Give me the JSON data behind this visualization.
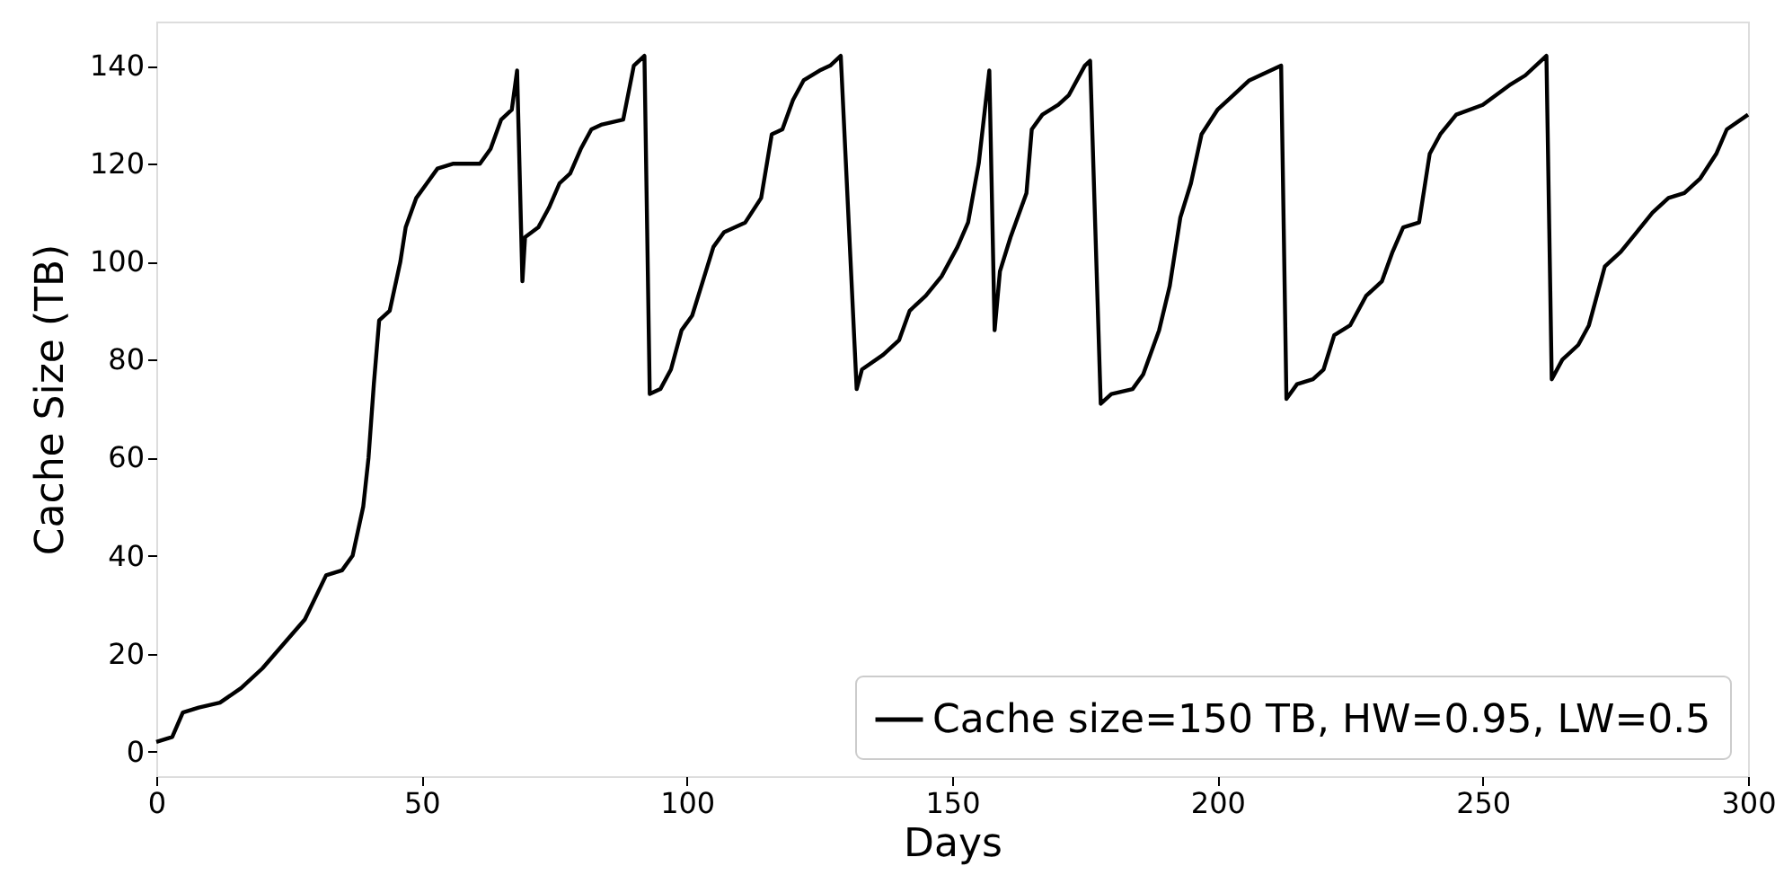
{
  "chart_data": {
    "type": "line",
    "xlabel": "Days",
    "ylabel": "Cache Size (TB)",
    "x": [
      0,
      3,
      5,
      8,
      12,
      16,
      20,
      24,
      28,
      32,
      35,
      37,
      39,
      40,
      41,
      42,
      44,
      46,
      47,
      49,
      51,
      53,
      56,
      61,
      63,
      65,
      67,
      68,
      69,
      69.5,
      72,
      74,
      76,
      78,
      80,
      82,
      84,
      88,
      90,
      92,
      93,
      95,
      97,
      99,
      101,
      103,
      105,
      107,
      111,
      114,
      116,
      118,
      120,
      122,
      125,
      127,
      129,
      132,
      133,
      137,
      140,
      142,
      145,
      148,
      151,
      153,
      155,
      157,
      158,
      159,
      161,
      164,
      165,
      167,
      170,
      172,
      175,
      176,
      178,
      180,
      184,
      186,
      189,
      191,
      193,
      195,
      197,
      200,
      203,
      206,
      208,
      210,
      212,
      213,
      215,
      218,
      220,
      222,
      225,
      228,
      231,
      233,
      235,
      238,
      240,
      242,
      245,
      250,
      255,
      258,
      262,
      263,
      265,
      268,
      270,
      273,
      276,
      279,
      282,
      285,
      288,
      291,
      294,
      296,
      300
    ],
    "series": [
      {
        "name": "Cache size=150 TB, HW=0.95, LW=0.5",
        "color": "#000000",
        "values": [
          2,
          3,
          8,
          9,
          10,
          13,
          17,
          22,
          27,
          36,
          37,
          40,
          50,
          60,
          75,
          88,
          90,
          100,
          107,
          113,
          116,
          119,
          120,
          120,
          123,
          129,
          131,
          139,
          96,
          105,
          107,
          111,
          116,
          118,
          123,
          127,
          128,
          129,
          140,
          142,
          73,
          74,
          78,
          86,
          89,
          96,
          103,
          106,
          108,
          113,
          126,
          127,
          133,
          137,
          139,
          140,
          142,
          74,
          78,
          81,
          84,
          90,
          93,
          97,
          103,
          108,
          120,
          139,
          86,
          98,
          105,
          114,
          127,
          130,
          132,
          134,
          140,
          141,
          71,
          73,
          74,
          77,
          86,
          95,
          109,
          116,
          126,
          131,
          134,
          137,
          138,
          139,
          140,
          72,
          75,
          76,
          78,
          85,
          87,
          93,
          96,
          102,
          107,
          108,
          122,
          126,
          130,
          132,
          136,
          138,
          142,
          76,
          80,
          83,
          87,
          99,
          102,
          106,
          110,
          113,
          114,
          117,
          122,
          127,
          130
        ]
      }
    ],
    "xlim": [
      0,
      300
    ],
    "xticks": [
      0,
      50,
      100,
      150,
      200,
      250,
      300
    ],
    "ylim": [
      -5,
      149
    ],
    "yticks": [
      0,
      20,
      40,
      60,
      80,
      100,
      120,
      140
    ],
    "grid": false,
    "legend": "bottom right"
  }
}
